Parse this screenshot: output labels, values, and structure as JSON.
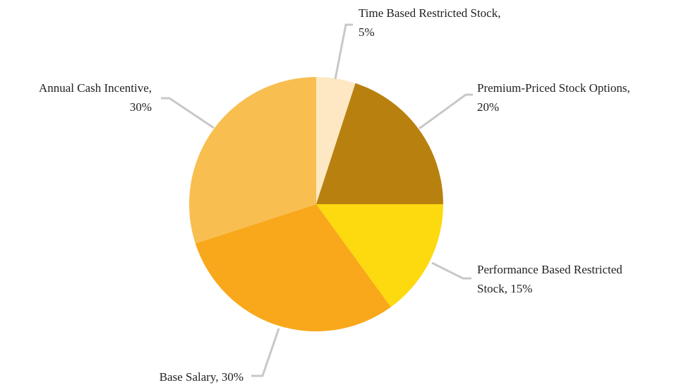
{
  "chart_data": {
    "type": "pie",
    "values": [
      5,
      20,
      15,
      30,
      30
    ],
    "value_labels": [
      [
        "Time Based Restricted Stock,",
        "5%"
      ],
      [
        "Premium-Priced Stock Options,",
        "20%"
      ],
      [
        "Performance Based Restricted",
        "Stock, 15%"
      ],
      [
        "Base Salary, 30%"
      ],
      [
        "Annual Cash Incentive,",
        "30%"
      ]
    ],
    "colors": [
      "#fde8c3",
      "#b8810f",
      "#fdd90f",
      "#f8a81a",
      "#f8be50"
    ]
  }
}
